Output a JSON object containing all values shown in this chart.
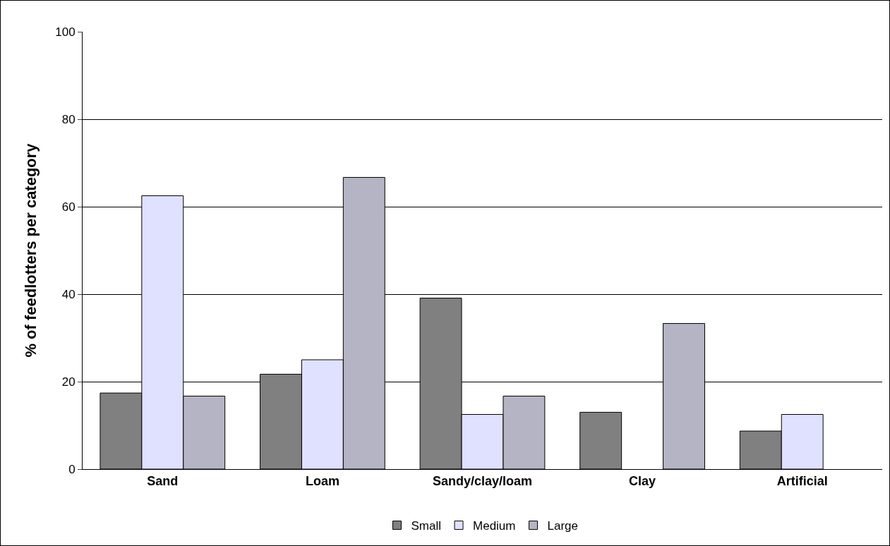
{
  "chart_data": {
    "type": "bar",
    "ylabel": "% of feedlotters per category",
    "categories": [
      "Sand",
      "Loam",
      "Sandy/clay/loam",
      "Clay",
      "Artificial"
    ],
    "series": [
      {
        "name": "Small",
        "color": "#808080",
        "values": [
          17.4,
          21.7,
          39.1,
          13.0,
          8.7
        ]
      },
      {
        "name": "Medium",
        "color": "#e0e0ff",
        "values": [
          62.5,
          25.0,
          12.5,
          null,
          12.5
        ]
      },
      {
        "name": "Large",
        "color": "#b4b4c4",
        "values": [
          16.7,
          66.7,
          16.7,
          33.3,
          null
        ]
      }
    ],
    "ylim": [
      0,
      100
    ],
    "yticks": [
      0,
      20,
      40,
      60,
      80,
      100
    ],
    "grid": "y",
    "legend": "bottom"
  }
}
